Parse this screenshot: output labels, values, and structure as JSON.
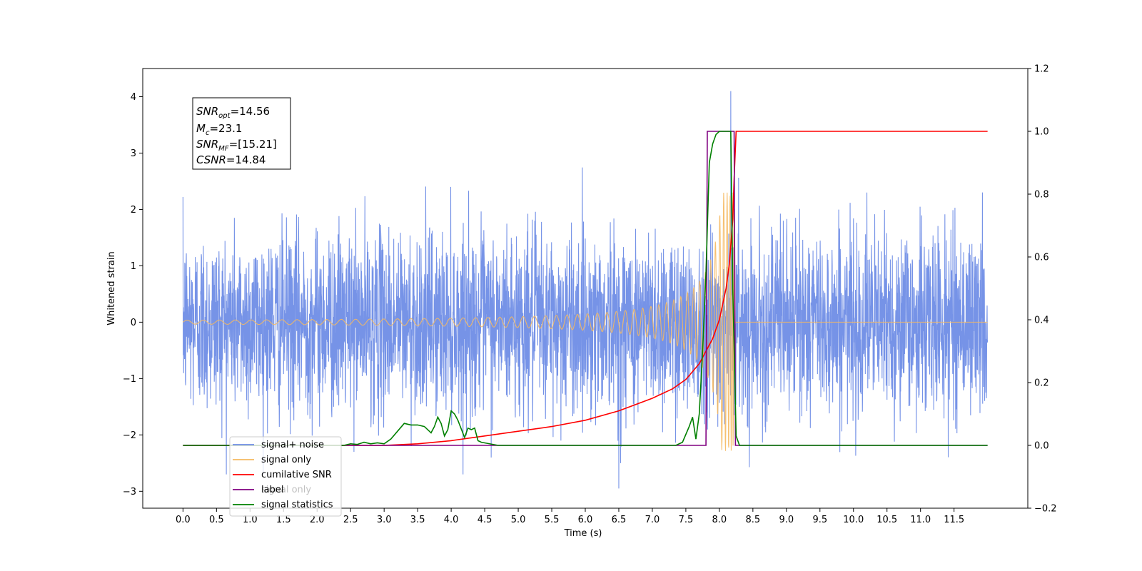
{
  "chart_data": {
    "type": "line",
    "title": "",
    "xlabel": "Time (s)",
    "ylabel": "Whitened strain",
    "xlim": [
      -0.6,
      12.6
    ],
    "ylim": [
      -3.3,
      4.5
    ],
    "y2lim": [
      -0.2,
      1.2
    ],
    "x_ticks": [
      "0.0",
      "0.5",
      "1.0",
      "1.5",
      "2.0",
      "2.5",
      "3.0",
      "3.5",
      "4.0",
      "4.5",
      "5.0",
      "5.5",
      "6.0",
      "6.5",
      "7.0",
      "7.5",
      "8.0",
      "8.5",
      "9.0",
      "9.5",
      "10.0",
      "10.5",
      "11.0",
      "11.5"
    ],
    "y_ticks": [
      "−3",
      "−2",
      "−1",
      "0",
      "1",
      "2",
      "3",
      "4"
    ],
    "y2_ticks": [
      "−0.2",
      "0.0",
      "0.2",
      "0.4",
      "0.6",
      "0.8",
      "1.0",
      "1.2"
    ],
    "annotation": {
      "snr_opt": {
        "label": "SNR",
        "sub": "opt",
        "value": "=14.56"
      },
      "mc": {
        "label": "M",
        "sub": "c",
        "value": "=23.1"
      },
      "snr_mf": {
        "label": "SNR",
        "sub": "MF",
        "value": "=[15.21]"
      },
      "csnr": {
        "label": "CSNR",
        "sub": "",
        "value": "=14.84"
      }
    },
    "legend": {
      "placement": "lower-left",
      "entries": [
        {
          "name": "signal+ noise",
          "color": "#6f8de6"
        },
        {
          "name": "signal only",
          "color": "#f5b961"
        },
        {
          "name": "cumilative SNR",
          "color": "#ff0000"
        },
        {
          "name": "label",
          "color": "#800080"
        },
        {
          "name": "signal statistics",
          "color": "#008000"
        }
      ],
      "hidden_text": "signal only"
    },
    "series": [
      {
        "name": "signal+ noise",
        "axis": "left",
        "color": "#6f8de6",
        "kind": "noise",
        "x_range": [
          0.0,
          12.0
        ],
        "sigma": 0.8,
        "peak": {
          "x": 8.17,
          "y": 4.1
        },
        "min": {
          "x": 6.5,
          "y": -2.95
        }
      },
      {
        "name": "signal only",
        "axis": "left",
        "color": "#f5b961",
        "kind": "chirp",
        "x_range": [
          0.0,
          12.0
        ],
        "merger_x": 8.22,
        "max_amplitude": 2.3
      },
      {
        "name": "cumilative SNR",
        "axis": "right",
        "color": "#ff0000",
        "x": [
          0.0,
          3.0,
          3.5,
          4.0,
          4.5,
          5.0,
          5.5,
          6.0,
          6.5,
          7.0,
          7.3,
          7.5,
          7.7,
          7.8,
          7.9,
          8.0,
          8.1,
          8.15,
          8.2,
          8.22,
          8.25,
          12.0
        ],
        "y": [
          0.0,
          0.0,
          0.005,
          0.015,
          0.03,
          0.045,
          0.06,
          0.08,
          0.11,
          0.15,
          0.18,
          0.21,
          0.26,
          0.3,
          0.34,
          0.4,
          0.5,
          0.58,
          0.72,
          0.85,
          1.0,
          1.0
        ]
      },
      {
        "name": "label",
        "axis": "right",
        "color": "#800080",
        "x": [
          0.0,
          7.8,
          7.82,
          8.22,
          8.24,
          12.0
        ],
        "y": [
          0.0,
          0.0,
          1.0,
          1.0,
          0.0,
          0.0
        ]
      },
      {
        "name": "signal statistics",
        "axis": "right",
        "color": "#008000",
        "x": [
          0.0,
          2.4,
          2.5,
          2.6,
          2.7,
          2.8,
          2.9,
          3.0,
          3.1,
          3.2,
          3.3,
          3.4,
          3.5,
          3.6,
          3.7,
          3.75,
          3.8,
          3.85,
          3.9,
          3.95,
          4.0,
          4.05,
          4.1,
          4.2,
          4.25,
          4.3,
          4.35,
          4.4,
          4.45,
          4.5,
          4.7,
          4.8,
          7.35,
          7.45,
          7.55,
          7.6,
          7.65,
          7.7,
          7.75,
          7.8,
          7.85,
          7.9,
          7.95,
          8.0,
          8.05,
          8.1,
          8.17,
          8.2,
          8.25,
          8.3,
          12.0
        ],
        "y": [
          0.0,
          0.0,
          0.005,
          0.003,
          0.01,
          0.005,
          0.008,
          0.005,
          0.02,
          0.045,
          0.07,
          0.065,
          0.065,
          0.06,
          0.04,
          0.06,
          0.09,
          0.07,
          0.03,
          0.05,
          0.11,
          0.1,
          0.08,
          0.025,
          0.055,
          0.05,
          0.055,
          0.015,
          0.01,
          0.008,
          0.0,
          0.0,
          0.0,
          0.01,
          0.06,
          0.09,
          0.02,
          0.1,
          0.3,
          0.55,
          0.9,
          0.96,
          0.99,
          1.0,
          1.0,
          1.0,
          1.0,
          0.5,
          0.03,
          0.0,
          0.0
        ]
      }
    ]
  }
}
